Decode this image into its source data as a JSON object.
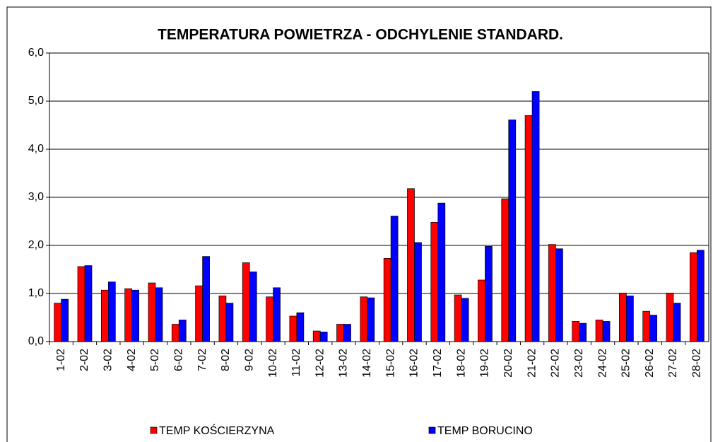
{
  "chart_data": {
    "type": "bar",
    "title": "TEMPERATURA POWIETRZA - ODCHYLENIE STANDARD.",
    "categories": [
      "1-02",
      "2-02",
      "3-02",
      "4-02",
      "5-02",
      "6-02",
      "7-02",
      "8-02",
      "9-02",
      "10-02",
      "11-02",
      "12-02",
      "13-02",
      "14-02",
      "15-02",
      "16-02",
      "17-02",
      "18-02",
      "19-02",
      "20-02",
      "21-02",
      "22-02",
      "23-02",
      "24-02",
      "25-02",
      "26-02",
      "27-02",
      "28-02"
    ],
    "series": [
      {
        "name": "TEMP KOŚCIERZYNA",
        "color": "#ff0000",
        "values": [
          0.8,
          1.56,
          1.07,
          1.1,
          1.22,
          0.36,
          1.16,
          0.95,
          1.64,
          0.93,
          0.53,
          0.22,
          0.36,
          0.93,
          1.73,
          3.18,
          2.48,
          0.97,
          1.28,
          2.97,
          4.7,
          2.02,
          0.42,
          0.45,
          1.01,
          0.63,
          1.01,
          1.85
        ]
      },
      {
        "name": "TEMP BORUCINO",
        "color": "#0000ff",
        "values": [
          0.88,
          1.58,
          1.24,
          1.07,
          1.12,
          0.45,
          1.77,
          0.8,
          1.45,
          1.12,
          0.6,
          0.2,
          0.36,
          0.91,
          2.61,
          2.06,
          2.88,
          0.9,
          1.98,
          4.61,
          5.2,
          1.93,
          0.38,
          0.42,
          0.95,
          0.55,
          0.8,
          1.9
        ]
      }
    ],
    "ylim": [
      0,
      6
    ],
    "yticks": [
      {
        "value": 0,
        "label": "0,0"
      },
      {
        "value": 1,
        "label": "1,0"
      },
      {
        "value": 2,
        "label": "2,0"
      },
      {
        "value": 3,
        "label": "3,0"
      },
      {
        "value": 4,
        "label": "4,0"
      },
      {
        "value": 5,
        "label": "5,0"
      },
      {
        "value": 6,
        "label": "6,0"
      }
    ],
    "grid": true
  }
}
